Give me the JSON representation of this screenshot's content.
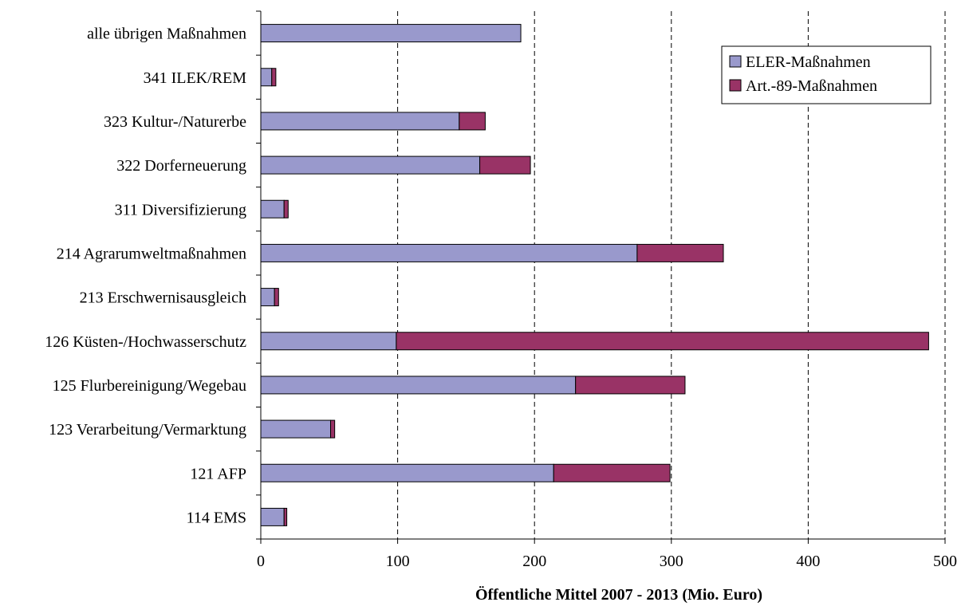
{
  "chart_data": {
    "type": "bar",
    "orientation": "horizontal",
    "stacked": true,
    "title": "",
    "xlabel": "Öffentliche Mittel 2007 - 2013 (Mio. Euro)",
    "ylabel": "",
    "xlim": [
      0,
      500
    ],
    "xticks": [
      0,
      100,
      200,
      300,
      400,
      500
    ],
    "grid": "vertical-dashed",
    "legend_position": "top-right",
    "categories": [
      "alle übrigen Maßnahmen",
      "341 ILEK/REM",
      "323 Kultur-/Naturerbe",
      "322 Dorferneuerung",
      "311 Diversifizierung",
      "214 Agrarumweltmaßnahmen",
      "213 Erschwernisausgleich",
      "126 Küsten-/Hochwasserschutz",
      "125 Flurbereinigung/Wegebau",
      "123 Verarbeitung/Vermarktung",
      "121 AFP",
      "114 EMS"
    ],
    "series": [
      {
        "name": "ELER-Maßnahmen",
        "color": "#9999cc",
        "values": [
          190,
          8,
          145,
          160,
          17,
          275,
          10,
          99,
          230,
          51,
          214,
          17
        ]
      },
      {
        "name": "Art.-89-Maßnahmen",
        "color": "#993366",
        "values": [
          0,
          3,
          19,
          37,
          3,
          63,
          3,
          389,
          80,
          3,
          85,
          2
        ]
      }
    ]
  }
}
